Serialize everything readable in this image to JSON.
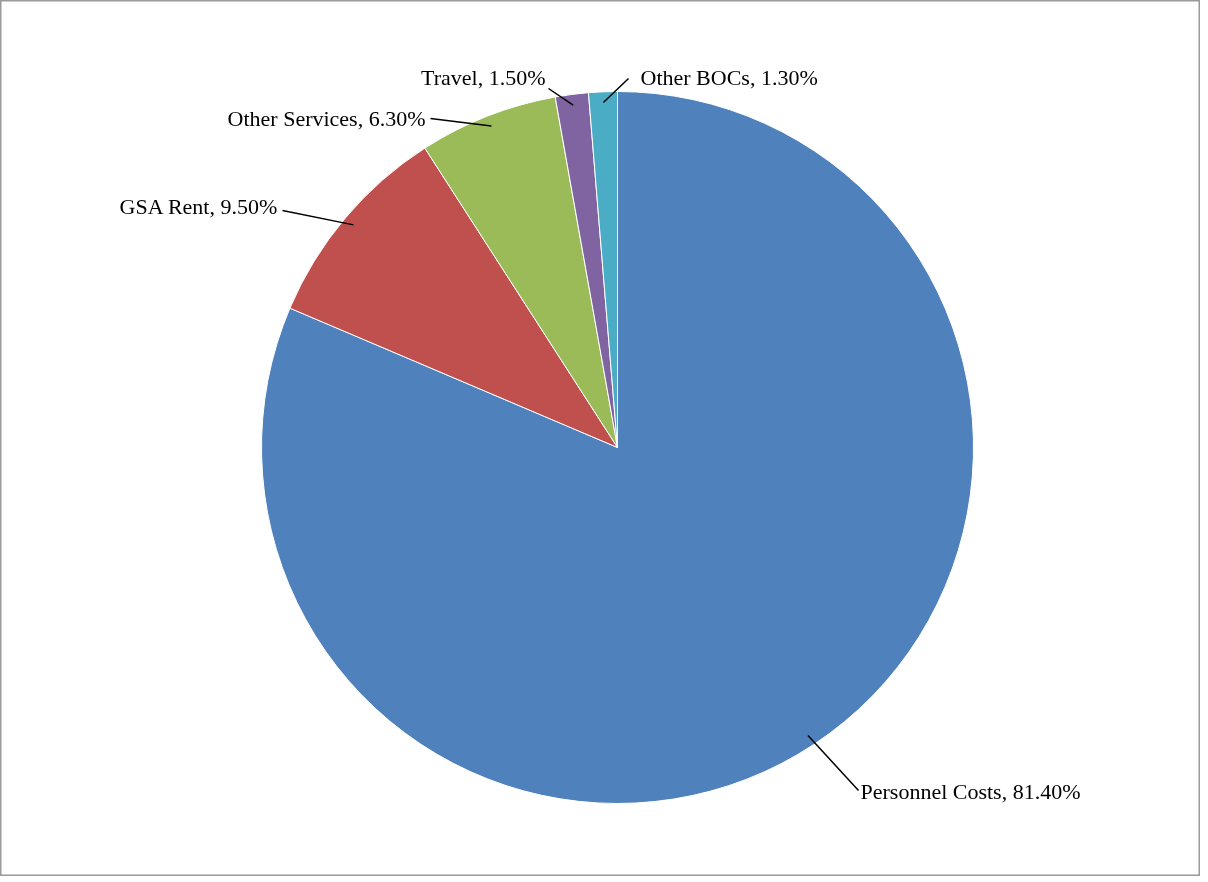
{
  "chart_data": {
    "type": "pie",
    "categories": [
      "Personnel Costs",
      "GSA Rent",
      "Other Services",
      "Travel",
      "Other BOCs"
    ],
    "values": [
      81.4,
      9.5,
      6.3,
      1.5,
      1.3
    ],
    "value_labels": [
      "81.40%",
      "9.50%",
      "6.30%",
      "1.50%",
      "1.30%"
    ],
    "colors": [
      "#4f81bd",
      "#c0504d",
      "#9bbb59",
      "#8064a2",
      "#4bacc6"
    ],
    "legend": false
  }
}
